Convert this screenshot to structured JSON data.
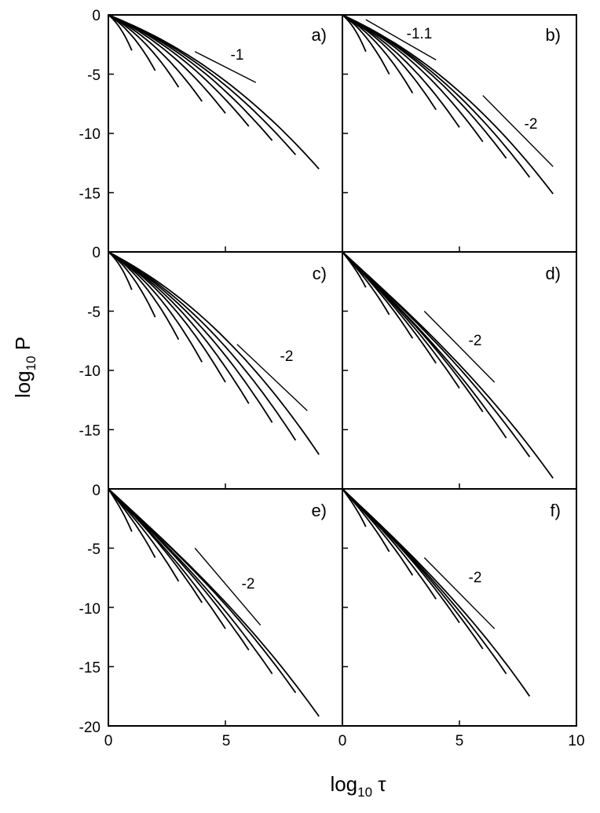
{
  "chart_data": {
    "type": "line",
    "xlabel": "log₁₀ τ",
    "ylabel": "log₁₀ P",
    "x_ticks": [
      "0",
      "5",
      "0",
      "5",
      "10"
    ],
    "y_ticks_top": [
      "0",
      "-5",
      "-10",
      "-15"
    ],
    "y_ticks_mid": [
      "0",
      "-5",
      "-10",
      "-15"
    ],
    "y_ticks_bottom": [
      "0",
      "-5",
      "-10",
      "-15",
      "-20"
    ],
    "panels": [
      {
        "label": "a)",
        "xlim": [
          0,
          10
        ],
        "ylim": [
          -20,
          0
        ],
        "reference_line": {
          "slope_label": "-1",
          "x": [
            3.7,
            6.3
          ],
          "y": [
            -3.1,
            -5.7
          ]
        },
        "curves": [
          {
            "n": 1,
            "x_end": 1.0,
            "y_end": -3.0
          },
          {
            "n": 2,
            "x_end": 2.0,
            "y_end": -4.7
          },
          {
            "n": 3,
            "x_end": 3.0,
            "y_end": -6.1
          },
          {
            "n": 4,
            "x_end": 4.0,
            "y_end": -7.3
          },
          {
            "n": 5,
            "x_end": 5.0,
            "y_end": -8.3
          },
          {
            "n": 6,
            "x_end": 6.0,
            "y_end": -9.4
          },
          {
            "n": 7,
            "x_end": 7.0,
            "y_end": -10.6
          },
          {
            "n": 8,
            "x_end": 8.0,
            "y_end": -11.8
          },
          {
            "n": 9,
            "x_end": 9.0,
            "y_end": -13.0
          }
        ]
      },
      {
        "label": "b)",
        "xlim": [
          0,
          10
        ],
        "ylim": [
          -20,
          0
        ],
        "reference_lines": [
          {
            "slope_label": "-1.1",
            "x": [
              1.0,
              4.0
            ],
            "y": [
              -0.4,
              -3.8
            ]
          },
          {
            "slope_label": "-2",
            "x": [
              6.0,
              9.0
            ],
            "y": [
              -6.8,
              -12.8
            ]
          }
        ],
        "curves": [
          {
            "n": 1,
            "x_end": 1.0,
            "y_end": -3.1
          },
          {
            "n": 2,
            "x_end": 2.0,
            "y_end": -5.0
          },
          {
            "n": 3,
            "x_end": 3.0,
            "y_end": -6.6
          },
          {
            "n": 4,
            "x_end": 4.0,
            "y_end": -8.0
          },
          {
            "n": 5,
            "x_end": 5.0,
            "y_end": -9.5
          },
          {
            "n": 6,
            "x_end": 6.0,
            "y_end": -10.7
          },
          {
            "n": 7,
            "x_end": 7.0,
            "y_end": -12.1
          },
          {
            "n": 8,
            "x_end": 8.0,
            "y_end": -13.7
          },
          {
            "n": 9,
            "x_end": 9.0,
            "y_end": -15.1
          }
        ]
      },
      {
        "label": "c)",
        "xlim": [
          0,
          10
        ],
        "ylim": [
          -20,
          0
        ],
        "reference_line": {
          "slope_label": "-2",
          "x": [
            5.5,
            8.5
          ],
          "y": [
            -7.8,
            -13.4
          ]
        },
        "curves": [
          {
            "n": 1,
            "x_end": 1.0,
            "y_end": -3.2
          },
          {
            "n": 2,
            "x_end": 2.0,
            "y_end": -5.5
          },
          {
            "n": 3,
            "x_end": 3.0,
            "y_end": -7.4
          },
          {
            "n": 4,
            "x_end": 4.0,
            "y_end": -9.3
          },
          {
            "n": 5,
            "x_end": 5.0,
            "y_end": -11.0
          },
          {
            "n": 6,
            "x_end": 6.0,
            "y_end": -12.8
          },
          {
            "n": 7,
            "x_end": 7.0,
            "y_end": -14.4
          },
          {
            "n": 8,
            "x_end": 8.0,
            "y_end": -15.9
          },
          {
            "n": 9,
            "x_end": 9.0,
            "y_end": -17.1
          }
        ]
      },
      {
        "label": "d)",
        "xlim": [
          0,
          10
        ],
        "ylim": [
          -20,
          0
        ],
        "reference_line": {
          "slope_label": "-2",
          "x": [
            3.5,
            6.5
          ],
          "y": [
            -5.0,
            -11.0
          ]
        },
        "curves": [
          {
            "n": 1,
            "x_end": 1.0,
            "y_end": -3.0
          },
          {
            "n": 2,
            "x_end": 2.0,
            "y_end": -5.3
          },
          {
            "n": 3,
            "x_end": 3.0,
            "y_end": -7.3
          },
          {
            "n": 4,
            "x_end": 4.0,
            "y_end": -9.4
          },
          {
            "n": 5,
            "x_end": 5.0,
            "y_end": -11.5
          },
          {
            "n": 6,
            "x_end": 6.0,
            "y_end": -13.5
          },
          {
            "n": 7,
            "x_end": 7.0,
            "y_end": -15.7
          },
          {
            "n": 8,
            "x_end": 8.0,
            "y_end": -17.3
          },
          {
            "n": 9,
            "x_end": 9.0,
            "y_end": -19.1
          }
        ]
      },
      {
        "label": "e)",
        "xlim": [
          0,
          10
        ],
        "ylim": [
          -20,
          0
        ],
        "reference_line": {
          "slope_label": "-2",
          "x": [
            3.7,
            6.5
          ],
          "y": [
            -5.0,
            -11.5
          ]
        },
        "curves": [
          {
            "n": 1,
            "x_end": 1.0,
            "y_end": -3.6
          },
          {
            "n": 2,
            "x_end": 2.0,
            "y_end": -5.8
          },
          {
            "n": 3,
            "x_end": 3.0,
            "y_end": -7.8
          },
          {
            "n": 4,
            "x_end": 4.0,
            "y_end": -9.6
          },
          {
            "n": 5,
            "x_end": 5.0,
            "y_end": -11.8
          },
          {
            "n": 6,
            "x_end": 6.0,
            "y_end": -13.6
          },
          {
            "n": 7,
            "x_end": 7.0,
            "y_end": -15.6
          },
          {
            "n": 8,
            "x_end": 8.0,
            "y_end": -17.2
          },
          {
            "n": 9,
            "x_end": 9.0,
            "y_end": -19.2
          }
        ]
      },
      {
        "label": "f)",
        "xlim": [
          0,
          10
        ],
        "ylim": [
          -20,
          0
        ],
        "reference_line": {
          "slope_label": "-2",
          "x": [
            3.5,
            6.5
          ],
          "y": [
            -5.8,
            -11.8
          ]
        },
        "curves": [
          {
            "n": 1,
            "x_end": 1.0,
            "y_end": -3.2
          },
          {
            "n": 2,
            "x_end": 2.0,
            "y_end": -5.3
          },
          {
            "n": 3,
            "x_end": 3.0,
            "y_end": -7.3
          },
          {
            "n": 4,
            "x_end": 4.0,
            "y_end": -9.3
          },
          {
            "n": 5,
            "x_end": 5.0,
            "y_end": -11.3
          },
          {
            "n": 6,
            "x_end": 6.0,
            "y_end": -13.5
          },
          {
            "n": 7,
            "x_end": 7.0,
            "y_end": -15.6
          },
          {
            "n": 8,
            "x_end": 8.0,
            "y_end": -17.5
          }
        ]
      }
    ]
  }
}
